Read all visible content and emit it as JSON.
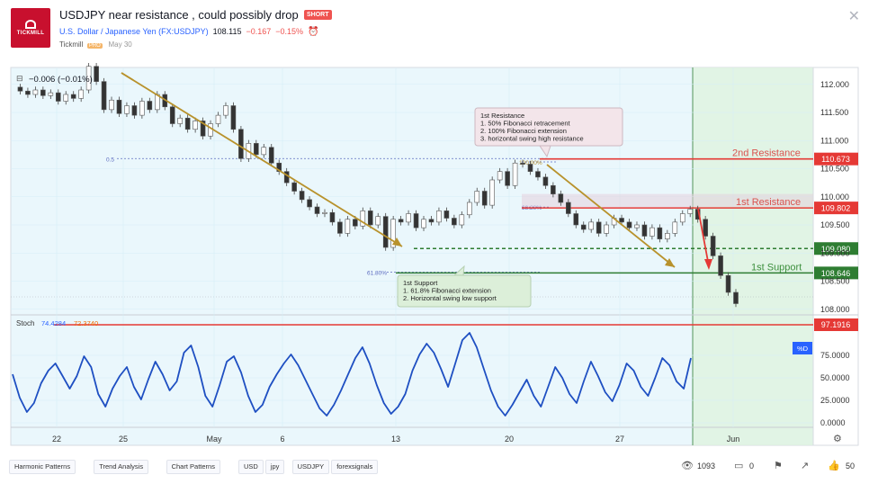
{
  "idea": {
    "title": "USDJPY near resistance , could possibly drop",
    "badge": "SHORT",
    "symbol": "U.S. Dollar / Japanese Yen (FX:USDJPY)",
    "price": "108.115",
    "change": "−0.167",
    "change_pct": "−0.15%",
    "author": "Tickmill",
    "author_badge": "PRO",
    "date": "May 30",
    "logo_text": "TICKMILL"
  },
  "chart_data": {
    "type": "candlestick",
    "indicator_readout": "−0.006 (−0.01%)",
    "x_ticks": [
      "22",
      "25",
      "May",
      "6",
      "13",
      "20",
      "27",
      "Jun"
    ],
    "y_ticks": [
      "112.000",
      "111.500",
      "111.000",
      "110.500",
      "110.000",
      "109.500",
      "109.000",
      "108.500",
      "108.000"
    ],
    "ylim": [
      107.9,
      112.3
    ],
    "levels": [
      {
        "label": "2nd Resistance",
        "value": 110.673,
        "tag": "110.673",
        "color": "#e53935"
      },
      {
        "label": "1st Resistance",
        "value": 109.802,
        "tag": "109.802",
        "color": "#e53935"
      },
      {
        "label": "",
        "value": 109.08,
        "tag": "109.080",
        "color": "#2e7d32"
      },
      {
        "label": "1st Support",
        "value": 108.646,
        "tag": "108.646",
        "color": "#2e7d32"
      }
    ],
    "fib_labels": [
      "0.5",
      "100.00%",
      "38.20%",
      "61.80%"
    ],
    "callouts": {
      "resistance": [
        "1st Resistance",
        "1. 50% Fibonacci retracement",
        "2. 100% Fibonacci extension",
        "3. horizontal swing high resistance"
      ],
      "support": [
        "1st Support",
        "1. 61.8% Fibonacci extension",
        "2. Horizontal swing low support"
      ]
    },
    "price_series": [
      111.95,
      111.88,
      111.82,
      111.9,
      111.8,
      111.85,
      111.7,
      111.82,
      111.75,
      111.9,
      112.32,
      112.05,
      111.55,
      111.72,
      111.48,
      111.62,
      111.45,
      111.7,
      111.55,
      111.82,
      111.6,
      111.3,
      111.4,
      111.2,
      111.35,
      111.08,
      111.3,
      111.45,
      111.62,
      111.2,
      110.68,
      110.95,
      110.75,
      110.88,
      110.6,
      110.45,
      110.25,
      110.1,
      109.95,
      109.82,
      109.7,
      109.72,
      109.55,
      109.35,
      109.6,
      109.48,
      109.75,
      109.5,
      109.65,
      109.1,
      109.6,
      109.55,
      109.7,
      109.45,
      109.6,
      109.55,
      109.75,
      109.62,
      109.5,
      109.68,
      109.9,
      110.1,
      109.85,
      110.3,
      110.45,
      110.2,
      110.6,
      110.58,
      110.45,
      110.35,
      110.2,
      110.05,
      109.9,
      109.7,
      109.5,
      109.42,
      109.55,
      109.35,
      109.5,
      109.62,
      109.55,
      109.45,
      109.5,
      109.3,
      109.45,
      109.25,
      109.35,
      109.55,
      109.7,
      109.78,
      109.6,
      109.3,
      108.95,
      108.6,
      108.3,
      108.1
    ],
    "stoch": {
      "label": "Stoch",
      "k": "74.4284",
      "d": "72.3740",
      "y_ticks": [
        "75.0000",
        "50.0000",
        "25.0000",
        "0.0000"
      ],
      "level": "97.1916",
      "badge": "%D",
      "series": [
        54,
        28,
        12,
        22,
        44,
        58,
        66,
        52,
        38,
        52,
        74,
        62,
        32,
        18,
        38,
        52,
        62,
        40,
        26,
        48,
        68,
        54,
        36,
        46,
        78,
        86,
        62,
        30,
        18,
        42,
        68,
        74,
        56,
        30,
        12,
        20,
        40,
        54,
        66,
        76,
        64,
        48,
        32,
        16,
        8,
        20,
        36,
        54,
        72,
        84,
        66,
        42,
        22,
        10,
        18,
        32,
        58,
        76,
        88,
        78,
        60,
        40,
        66,
        92,
        100,
        84,
        60,
        36,
        18,
        8,
        20,
        34,
        48,
        30,
        18,
        40,
        62,
        50,
        32,
        22,
        46,
        68,
        52,
        34,
        24,
        42,
        66,
        58,
        40,
        30,
        50,
        72,
        64,
        46,
        38,
        72
      ]
    }
  },
  "tags": [
    "Harmonic Patterns",
    "Trend Analysis",
    "Chart Patterns",
    "USD",
    "jpy",
    "USDJPY",
    "forexsignals"
  ],
  "footer": {
    "views": "1093",
    "comments": "0",
    "likes": "50"
  }
}
